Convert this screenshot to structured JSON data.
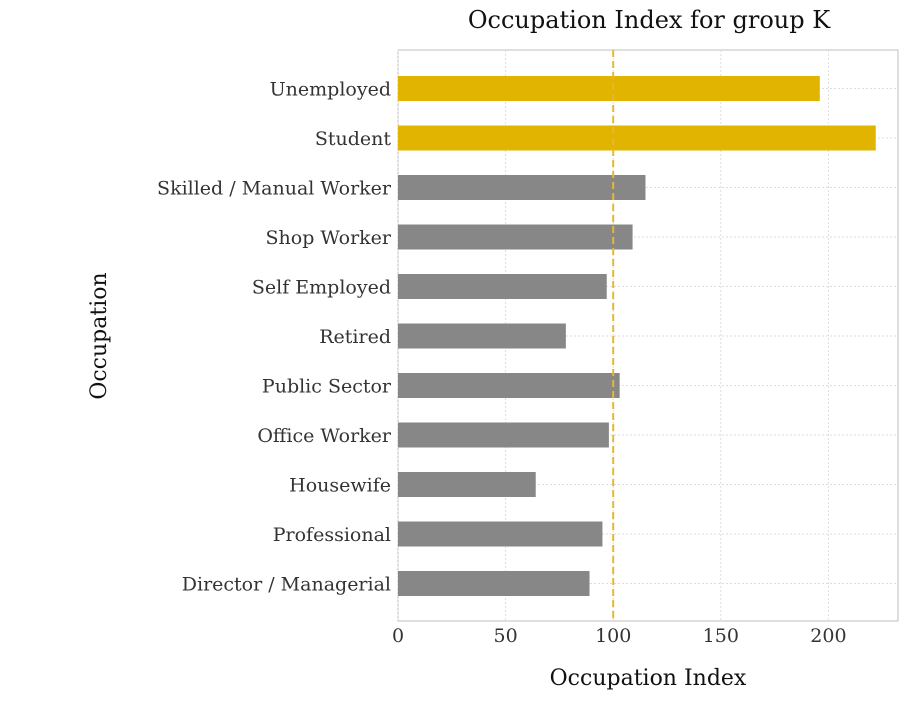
{
  "chart_data": {
    "type": "bar",
    "orientation": "horizontal",
    "title": "Occupation Index for group K",
    "xlabel": "Occupation Index",
    "ylabel": "Occupation",
    "xlim": [
      0,
      232
    ],
    "xticks": [
      0,
      50,
      100,
      150,
      200
    ],
    "grid": true,
    "reference_line": {
      "value": 100,
      "style": "dashed",
      "color": "#e6b830"
    },
    "highlight_color": "#e0b400",
    "base_color": "#878787",
    "categories": [
      "Unemployed",
      "Student",
      "Skilled / Manual Worker",
      "Shop Worker",
      "Self Employed",
      "Retired",
      "Public Sector",
      "Office Worker",
      "Housewife",
      "Professional",
      "Director / Managerial"
    ],
    "values": [
      196,
      222,
      115,
      109,
      97,
      78,
      103,
      98,
      64,
      95,
      89
    ],
    "highlighted": [
      true,
      true,
      false,
      false,
      false,
      false,
      false,
      false,
      false,
      false,
      false
    ]
  }
}
